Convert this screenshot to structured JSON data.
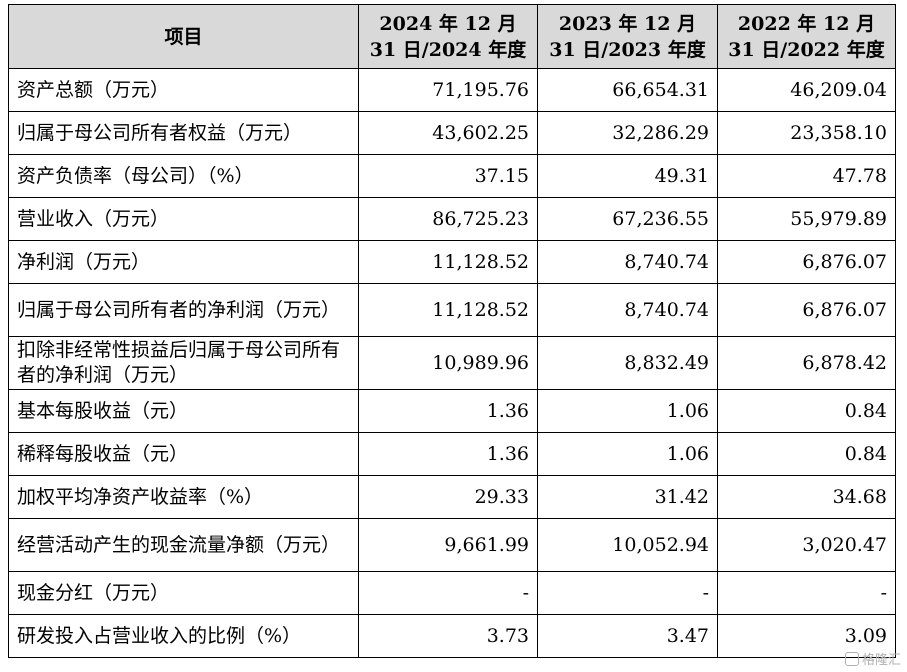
{
  "table": {
    "header": [
      "项目",
      "2024 年 12 月 31 日/2024 年度",
      "2023 年 12 月 31 日/2023 年度",
      "2022 年 12 月 31 日/2022 年度"
    ],
    "rows": [
      {
        "label": "资产总额（万元）",
        "values": [
          "71,195.76",
          "66,654.31",
          "46,209.04"
        ]
      },
      {
        "label": "归属于母公司所有者权益（万元）",
        "values": [
          "43,602.25",
          "32,286.29",
          "23,358.10"
        ]
      },
      {
        "label": "资产负债率（母公司）（%）",
        "values": [
          "37.15",
          "49.31",
          "47.78"
        ]
      },
      {
        "label": "营业收入（万元）",
        "values": [
          "86,725.23",
          "67,236.55",
          "55,979.89"
        ]
      },
      {
        "label": "净利润（万元）",
        "values": [
          "11,128.52",
          "8,740.74",
          "6,876.07"
        ]
      },
      {
        "label": "归属于母公司所有者的净利润（万元）",
        "values": [
          "11,128.52",
          "8,740.74",
          "6,876.07"
        ]
      },
      {
        "label": "扣除非经常性损益后归属于母公司所有者的净利润（万元）",
        "values": [
          "10,989.96",
          "8,832.49",
          "6,878.42"
        ]
      },
      {
        "label": "基本每股收益（元）",
        "values": [
          "1.36",
          "1.06",
          "0.84"
        ]
      },
      {
        "label": "稀释每股收益（元）",
        "values": [
          "1.36",
          "1.06",
          "0.84"
        ]
      },
      {
        "label": "加权平均净资产收益率（%）",
        "values": [
          "29.33",
          "31.42",
          "34.68"
        ]
      },
      {
        "label": "经营活动产生的现金流量净额（万元）",
        "values": [
          "9,661.99",
          "10,052.94",
          "3,020.47"
        ]
      },
      {
        "label": "现金分红（万元）",
        "values": [
          "-",
          "-",
          "-"
        ]
      },
      {
        "label": "研发投入占营业收入的比例（%）",
        "values": [
          "3.73",
          "3.47",
          "3.09"
        ]
      }
    ]
  },
  "watermark": {
    "text": "格隆汇"
  }
}
